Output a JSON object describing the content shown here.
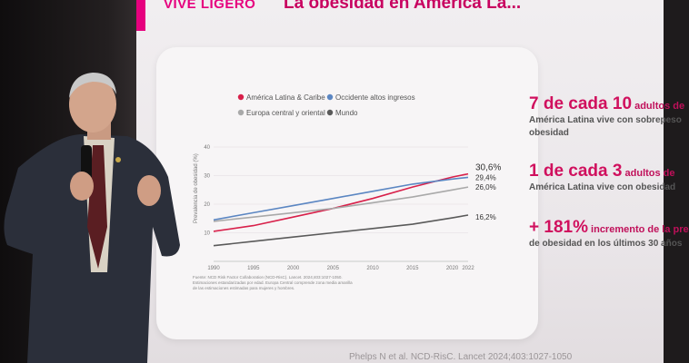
{
  "slide": {
    "brand": "VIVE LIGERO",
    "title": "La obesidad en América La..."
  },
  "chart_data": {
    "type": "line",
    "x": [
      1990,
      1995,
      2000,
      2005,
      2010,
      2015,
      2020,
      2022
    ],
    "xticks": [
      "1990",
      "1995",
      "2000",
      "2005",
      "2010",
      "2015",
      "2020",
      "2022"
    ],
    "yticks": [
      "10",
      "20",
      "30",
      "40"
    ],
    "ylim": [
      0,
      40
    ],
    "ylabel": "Prevalencia de obesidad (%)",
    "legend": "top",
    "series": [
      {
        "name": "América Latina & Caribe",
        "color": "#d8204a",
        "values": [
          10.5,
          12.5,
          15.5,
          18.5,
          22.0,
          26.0,
          29.5,
          30.6
        ],
        "end_label": "30,6%"
      },
      {
        "name": "Occidente altos ingresos",
        "color": "#5b86c2",
        "values": [
          14.5,
          17.0,
          19.5,
          22.0,
          24.5,
          27.0,
          28.8,
          29.4
        ],
        "end_label": "29,4%"
      },
      {
        "name": "Europa central y oriental",
        "color": "#a9a9a9",
        "values": [
          14.0,
          15.5,
          17.0,
          18.5,
          20.5,
          22.5,
          25.0,
          26.0
        ],
        "end_label": "26,0%"
      },
      {
        "name": "Mundo",
        "color": "#5a5a5a",
        "values": [
          5.5,
          7.0,
          8.5,
          10.0,
          11.5,
          13.0,
          15.2,
          16.2
        ],
        "end_label": "16,2%"
      }
    ]
  },
  "source_note": "Fuente: NCD Risk Factor Collaboration (NCD-RisC). Lancet. 2024;403:1027-1050. Estimaciones estandarizadas por edad. Europa Central comprende zona media amarilla de las estimaciones estimadas para mujeres y hombres.",
  "stats": [
    {
      "big": "7 de cada 10",
      "small": " adultos de",
      "sub1": "América Latina vive con sobrepeso",
      "sub2": "obesidad"
    },
    {
      "big": "1 de cada 3",
      "small": " adultos de",
      "sub1": "América Latina vive con obesidad",
      "sub2": ""
    },
    {
      "big": "+ 181%",
      "small": " incremento de la pre",
      "sub1": "de obesidad en los últimos 30 años",
      "sub2": ""
    }
  ],
  "citation": "Phelps N et al. NCD-RisC. Lancet 2024;403:1027-1050"
}
